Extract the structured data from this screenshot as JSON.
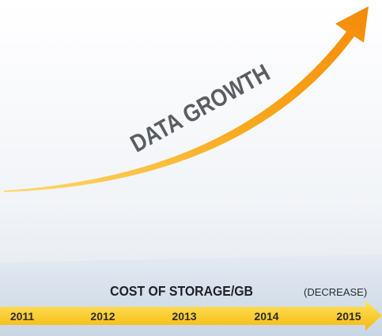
{
  "graphic": {
    "title": "DATA GROWTH",
    "footer": {
      "title": "COST OF STORAGE/GB",
      "note": "(DECREASE)"
    },
    "timeline": [
      "2011",
      "2012",
      "2013",
      "2014",
      "2015"
    ]
  }
}
